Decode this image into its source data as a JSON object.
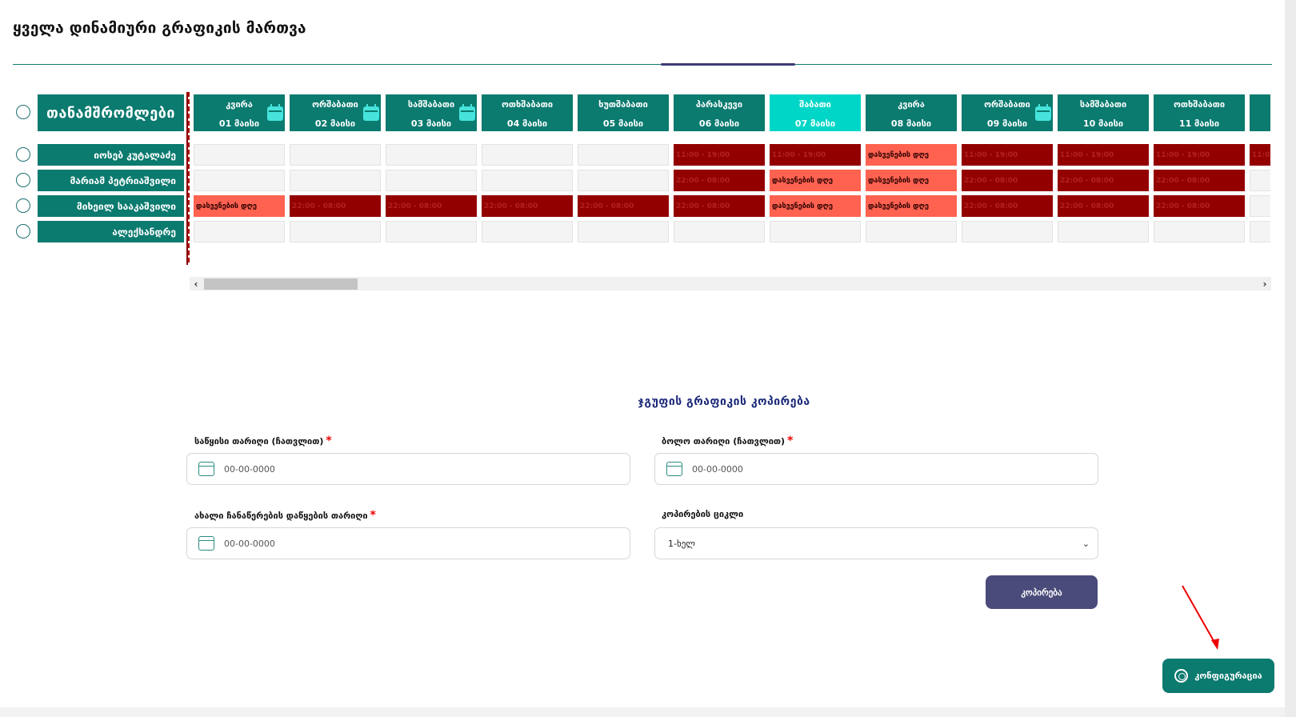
{
  "page_title": "ყველა დინამიური გრაფიკის მართვა",
  "employees_header": "თანამშრომლები",
  "employees": [
    {
      "name": "იოსებ კუტალაძე"
    },
    {
      "name": "მარიამ პეტრიაშვილი"
    },
    {
      "name": "მიხეილ სააკაშვილი"
    },
    {
      "name": "ალექსანდრე"
    }
  ],
  "days": [
    {
      "name": "კვირა",
      "date": "01 მაისი",
      "has_calendar": true,
      "highlight": false
    },
    {
      "name": "ორშაბათი",
      "date": "02 მაისი",
      "has_calendar": true,
      "highlight": false
    },
    {
      "name": "სამშაბათი",
      "date": "03 მაისი",
      "has_calendar": true,
      "highlight": false
    },
    {
      "name": "ოთხშაბათი",
      "date": "04 მაისი",
      "has_calendar": false,
      "highlight": false
    },
    {
      "name": "ხუთშაბათი",
      "date": "05 მაისი",
      "has_calendar": false,
      "highlight": false
    },
    {
      "name": "პარასკევი",
      "date": "06 მაისი",
      "has_calendar": false,
      "highlight": false
    },
    {
      "name": "შაბათი",
      "date": "07 მაისი",
      "has_calendar": false,
      "highlight": true
    },
    {
      "name": "კვირა",
      "date": "08 მაისი",
      "has_calendar": false,
      "highlight": false
    },
    {
      "name": "ორშაბათი",
      "date": "09 მაისი",
      "has_calendar": true,
      "highlight": false
    },
    {
      "name": "სამშაბათი",
      "date": "10 მაისი",
      "has_calendar": false,
      "highlight": false
    },
    {
      "name": "ოთხშაბათი",
      "date": "11 მაისი",
      "has_calendar": false,
      "highlight": false
    },
    {
      "name": "",
      "date": "",
      "has_calendar": false,
      "highlight": false
    }
  ],
  "schedule": [
    [
      "",
      "",
      "",
      "",
      "",
      "11:00 - 19:00",
      "11:00 - 19:00",
      "დასვენების დღე",
      "11:00 - 19:00",
      "11:00 - 19:00",
      "11:00 - 19:00",
      "11:00"
    ],
    [
      "",
      "",
      "",
      "",
      "",
      "22:00 - 08:00",
      "დასვენების დღე",
      "დასვენების დღე",
      "22:00 - 08:00",
      "22:00 - 08:00",
      "22:00 - 08:00",
      ""
    ],
    [
      "დასვენების დღე",
      "22:00 - 08:00",
      "22:00 - 08:00",
      "22:00 - 08:00",
      "22:00 - 08:00",
      "22:00 - 08:00",
      "დასვენების დღე",
      "დასვენების დღე",
      "22:00 - 08:00",
      "22:00 - 08:00",
      "22:00 - 08:00",
      ""
    ],
    [
      "",
      "",
      "",
      "",
      "",
      "",
      "",
      "",
      "",
      "",
      "",
      ""
    ]
  ],
  "day_off_label": "დასვენების დღე",
  "colors": {
    "primary": "#0b7a6f",
    "highlight": "#00d6c7",
    "shift": "#930000",
    "day_off": "#ff6250",
    "empty": "#f4f4f4",
    "button": "#4a4b7a"
  },
  "copy_section": {
    "title": "ჯგუფის გრაფიკის კოპირება",
    "start_date_label": "საწყისი თარიღი (ჩათვლით)",
    "end_date_label": "ბოლო თარიღი (ჩათვლით)",
    "new_start_label": "ახალი ჩანაწერების დაწყების თარიღი",
    "cycle_label": "კოპირების ციკლი",
    "date_placeholder": "00-00-0000",
    "cycle_value": "1-ხელ",
    "required_mark": "*",
    "copy_button": "კოპირება"
  },
  "config_button": "კონფიგურაცია",
  "icons": {
    "calendar": "calendar-icon",
    "gear": "gear-icon",
    "chevron": "chevron-down-icon",
    "scroll_left": "‹",
    "scroll_right": "›"
  }
}
